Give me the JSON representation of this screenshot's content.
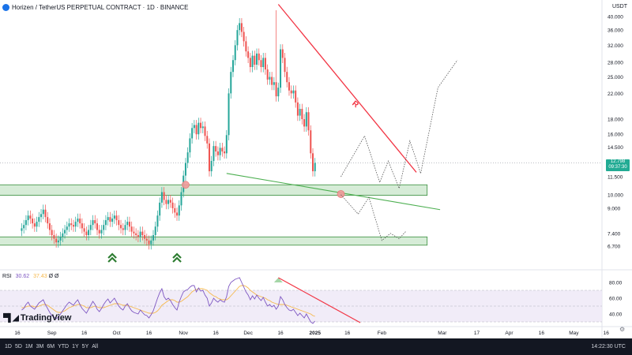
{
  "header": {
    "title": "Horizen / TetherUS PERPETUAL CONTRACT · 1D · BINANCE",
    "currency": "USDT"
  },
  "price_tag": {
    "price": "12.798",
    "countdown": "09:37:30"
  },
  "rsi_legend": {
    "name": "RSI",
    "value": "30.62",
    "ma": "37.43",
    "extra": "Ø Ø"
  },
  "brand": "TradingView",
  "bottom_bar": {
    "timeframes": [
      "1D",
      "5D",
      "1M",
      "3M",
      "6M",
      "YTD",
      "1Y",
      "5Y",
      "All"
    ],
    "clock": "14:22:30 UTC"
  },
  "colors": {
    "up": "#26a69a",
    "down": "#ef5350",
    "zone_fill": "#c8e6c9",
    "zone_border": "#388e3c",
    "resistance": "#f23645",
    "support": "#4caf50",
    "rsi": "#7e57c2",
    "rsi_ma": "#f6b84a",
    "projection": "#555555",
    "arrows": "#2e7d32"
  },
  "chart_data": {
    "type": "candlestick",
    "scale": "log",
    "y_ticks": [
      40,
      36,
      32,
      28,
      25,
      22,
      18,
      16,
      14.5,
      11.5,
      10,
      9,
      7.4,
      6.7
    ],
    "y_tick_labels": [
      "40.000",
      "36.000",
      "32.000",
      "28.000",
      "25.000",
      "22.000",
      "18.000",
      "16.000",
      "14.500",
      "11.500",
      "10.000",
      "9.000",
      "7.400",
      "6.700"
    ],
    "x_ticks": [
      "16",
      "Sep",
      "16",
      "Oct",
      "16",
      "Nov",
      "16",
      "Dec",
      "16",
      "2025",
      "16",
      "Feb",
      "Mar",
      "17",
      "Apr",
      "16",
      "May",
      "16"
    ],
    "x_tick_days": [
      0,
      16,
      31,
      46,
      61,
      77,
      92,
      107,
      122,
      138,
      153,
      169,
      197,
      213,
      228,
      243,
      258,
      273
    ],
    "candles_close": [
      7.7,
      7.9,
      8.2,
      8.5,
      8.3,
      8.0,
      7.8,
      8.1,
      8.4,
      8.6,
      8.9,
      8.4,
      8.0,
      7.6,
      7.3,
      7.1,
      6.9,
      7.0,
      7.2,
      7.4,
      7.6,
      7.8,
      8.0,
      7.9,
      7.8,
      8.1,
      8.3,
      8.0,
      7.7,
      7.5,
      7.3,
      7.6,
      7.9,
      8.2,
      8.0,
      7.6,
      7.4,
      7.6,
      7.9,
      8.2,
      8.4,
      8.1,
      8.3,
      8.5,
      8.2,
      7.9,
      7.7,
      7.6,
      7.9,
      8.1,
      7.8,
      7.5,
      7.4,
      7.3,
      7.2,
      7.5,
      7.3,
      7.1,
      7.0,
      6.8,
      7.0,
      7.3,
      7.8,
      8.5,
      9.4,
      10.2,
      9.6,
      9.3,
      9.6,
      9.4,
      9.0,
      8.7,
      8.5,
      9.2,
      10.2,
      11.6,
      12.8,
      13.9,
      15.5,
      16.8,
      17.2,
      16.0,
      17.5,
      16.8,
      17.0,
      15.8,
      14.9,
      12.0,
      13.0,
      14.6,
      14.0,
      13.6,
      14.4,
      14.0,
      13.8,
      15.9,
      22.0,
      26.0,
      28.5,
      32.0,
      36.0,
      38.0,
      35.5,
      33.0,
      30.5,
      29.0,
      27.0,
      29.5,
      27.5,
      30.0,
      28.5,
      27.0,
      29.0,
      26.5,
      24.5,
      25.0,
      23.5,
      24.0,
      21.5,
      23.0,
      31.0,
      29.0,
      26.0,
      24.0,
      22.5,
      22.0,
      22.5,
      20.5,
      18.5,
      19.5,
      18.0,
      17.0,
      19.0,
      16.5,
      13.8,
      12.0,
      12.8
    ],
    "start_day": 2,
    "last_price": 12.798,
    "pivot_high": 42.0,
    "pivot_high_day": 120,
    "zones": [
      {
        "top": 10.8,
        "bottom": 9.95,
        "start_day": -12,
        "end_day": 190
      },
      {
        "top": 7.2,
        "bottom": 6.75,
        "start_day": -12,
        "end_day": 190
      }
    ],
    "resistance_line": {
      "from": [
        121,
        44.0
      ],
      "to": [
        185,
        11.9
      ],
      "label": "R"
    },
    "support_line": {
      "from": [
        97,
        11.8
      ],
      "to": [
        196,
        8.9
      ]
    },
    "markers": [
      {
        "day": 78,
        "price": 10.8
      },
      {
        "day": 150,
        "price": 10.05
      }
    ],
    "arrows_days": [
      44,
      74
    ],
    "projection_1": [
      [
        150,
        11.5
      ],
      [
        161,
        15.8
      ],
      [
        168,
        11.0
      ],
      [
        172,
        13.0
      ],
      [
        177,
        10.5
      ],
      [
        182,
        15.2
      ],
      [
        187,
        11.8
      ],
      [
        195,
        23.0
      ],
      [
        204,
        28.5
      ]
    ],
    "projection_2": [
      [
        150,
        10.0
      ],
      [
        158,
        8.6
      ],
      [
        163,
        9.8
      ],
      [
        169,
        7.0
      ],
      [
        173,
        7.4
      ],
      [
        177,
        7.1
      ],
      [
        180,
        7.5
      ]
    ],
    "rsi": {
      "y_ticks": [
        80,
        60,
        40
      ],
      "y_tick_labels": [
        "80.00",
        "60.00",
        "40.00"
      ],
      "overbought": 70,
      "oversold": 30,
      "mid": 50,
      "values": [
        45,
        47,
        52,
        55,
        50,
        48,
        46,
        50,
        54,
        56,
        58,
        52,
        47,
        42,
        38,
        36,
        34,
        36,
        40,
        44,
        48,
        52,
        55,
        53,
        51,
        55,
        58,
        52,
        47,
        44,
        41,
        46,
        51,
        56,
        52,
        46,
        43,
        47,
        52,
        56,
        59,
        54,
        57,
        60,
        55,
        50,
        47,
        45,
        50,
        53,
        48,
        44,
        42,
        41,
        40,
        45,
        42,
        39,
        38,
        35,
        39,
        44,
        52,
        60,
        67,
        72,
        62,
        58,
        60,
        57,
        52,
        48,
        45,
        55,
        62,
        68,
        70,
        71,
        74,
        76,
        76,
        68,
        73,
        69,
        70,
        64,
        60,
        50,
        54,
        60,
        57,
        55,
        58,
        56,
        55,
        62,
        75,
        80,
        82,
        84,
        85,
        86,
        80,
        74,
        68,
        64,
        58,
        63,
        59,
        64,
        60,
        57,
        61,
        55,
        50,
        52,
        49,
        51,
        46,
        50,
        62,
        58,
        52,
        48,
        45,
        44,
        46,
        42,
        38,
        41,
        38,
        35,
        40,
        35,
        30,
        28,
        31
      ],
      "ma": [
        48,
        48,
        49,
        50,
        50,
        50,
        49,
        49,
        50,
        51,
        52,
        52,
        51,
        49,
        47,
        45,
        43,
        42,
        42,
        43,
        44,
        46,
        48,
        49,
        50,
        51,
        52,
        52,
        51,
        50,
        48,
        48,
        48,
        49,
        50,
        49,
        48,
        48,
        48,
        49,
        50,
        51,
        52,
        53,
        53,
        53,
        52,
        51,
        51,
        51,
        50,
        49,
        48,
        47,
        46,
        45,
        44,
        43,
        42,
        41,
        41,
        41,
        42,
        44,
        47,
        51,
        53,
        55,
        57,
        58,
        58,
        57,
        55,
        55,
        56,
        58,
        60,
        62,
        65,
        68,
        70,
        71,
        72,
        72,
        72,
        71,
        70,
        67,
        65,
        63,
        62,
        60,
        59,
        58,
        58,
        58,
        60,
        63,
        66,
        69,
        72,
        75,
        76,
        76,
        75,
        73,
        70,
        68,
        66,
        64,
        63,
        62,
        61,
        60,
        58,
        57,
        55,
        54,
        53,
        52,
        52,
        52,
        52,
        51,
        50,
        49,
        48,
        47,
        46,
        45,
        44,
        43,
        42,
        41,
        40,
        38,
        37
      ],
      "divergence_line": {
        "from": [
          121,
          86.0
        ],
        "to": [
          159,
          29.0
        ]
      }
    }
  }
}
